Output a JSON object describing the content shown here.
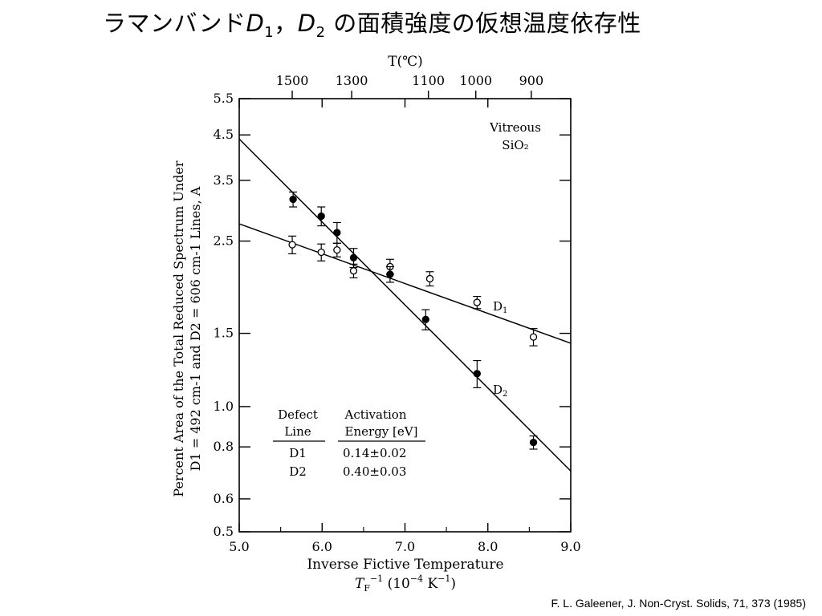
{
  "slide": {
    "title_prefix": "ラマンバンド",
    "title_d": "D",
    "title_sub1": "1",
    "title_sep": "，",
    "title_sub2": "2",
    "title_suffix": " の面積強度の仮想温度依存性",
    "citation": "F. L. Galeener, J. Non-Cryst. Solids, 71, 373 (1985)"
  },
  "chart_data": {
    "type": "scatter",
    "title": "",
    "xlabel": "Inverse Fictive Temperature",
    "xlabel_units": "T_F^-1 (10^-4 K^-1)",
    "ylabel_line1": "Percent Area of the Total Reduced Spectrum Under",
    "ylabel_line2": "D1 = 492 cm-1 and D2 = 606 cm-1 Lines, A",
    "top_axis_label": "T(℃)",
    "x_scale": "linear",
    "y_scale": "log",
    "xlim": [
      5.0,
      9.0
    ],
    "ylim": [
      0.5,
      5.5
    ],
    "x_ticks": [
      5.0,
      6.0,
      7.0,
      8.0,
      9.0
    ],
    "x_tick_labels": [
      "5.0",
      "6.0",
      "7.0",
      "8.0",
      "9.0"
    ],
    "y_ticks": [
      0.5,
      0.6,
      0.8,
      1.0,
      1.5,
      2.5,
      3.5,
      4.5,
      5.5
    ],
    "y_tick_labels": [
      "0.5",
      "0.6",
      "0.8",
      "1.0",
      "1.5",
      "2.5",
      "3.5",
      "4.5",
      "5.5"
    ],
    "top_ticks_celsius": [
      1500,
      1300,
      1100,
      1000,
      900
    ],
    "top_tick_labels": [
      "1500",
      "1300",
      "1100",
      "1000",
      "900"
    ],
    "annotation": [
      "Vitreous",
      "SiO₂"
    ],
    "grid": false,
    "series": [
      {
        "name": "D1",
        "marker": "open-circle",
        "points": [
          {
            "x": 5.64,
            "y": 2.45,
            "err": 0.12
          },
          {
            "x": 5.99,
            "y": 2.35,
            "err": 0.11
          },
          {
            "x": 6.18,
            "y": 2.38,
            "err": 0.09
          },
          {
            "x": 6.38,
            "y": 2.12,
            "err": 0.08
          },
          {
            "x": 6.82,
            "y": 2.17,
            "err": 0.09
          },
          {
            "x": 7.3,
            "y": 2.03,
            "err": 0.08
          },
          {
            "x": 7.87,
            "y": 1.78,
            "err": 0.06
          },
          {
            "x": 8.55,
            "y": 1.47,
            "err": 0.07
          }
        ],
        "fit_line": [
          [
            5.0,
            2.75
          ],
          [
            9.0,
            1.42
          ]
        ]
      },
      {
        "name": "D2",
        "marker": "filled-circle",
        "points": [
          {
            "x": 5.65,
            "y": 3.15,
            "err": 0.13
          },
          {
            "x": 5.99,
            "y": 2.87,
            "err": 0.15
          },
          {
            "x": 6.18,
            "y": 2.62,
            "err": 0.15
          },
          {
            "x": 6.38,
            "y": 2.28,
            "err": 0.12
          },
          {
            "x": 6.82,
            "y": 2.08,
            "err": 0.09
          },
          {
            "x": 7.25,
            "y": 1.62,
            "err": 0.09
          },
          {
            "x": 7.87,
            "y": 1.2,
            "err": 0.09
          },
          {
            "x": 8.55,
            "y": 0.82,
            "err": 0.03
          }
        ],
        "fit_line": [
          [
            5.0,
            4.4
          ],
          [
            9.0,
            0.7
          ]
        ]
      }
    ],
    "line_labels": {
      "D1": "D1",
      "D2": "D2"
    },
    "table": {
      "headers": [
        [
          "Defect",
          "Line"
        ],
        [
          "Activation",
          "Energy [eV]"
        ]
      ],
      "rows": [
        [
          "D1",
          "0.14±0.02"
        ],
        [
          "D2",
          "0.40±0.03"
        ]
      ]
    }
  }
}
